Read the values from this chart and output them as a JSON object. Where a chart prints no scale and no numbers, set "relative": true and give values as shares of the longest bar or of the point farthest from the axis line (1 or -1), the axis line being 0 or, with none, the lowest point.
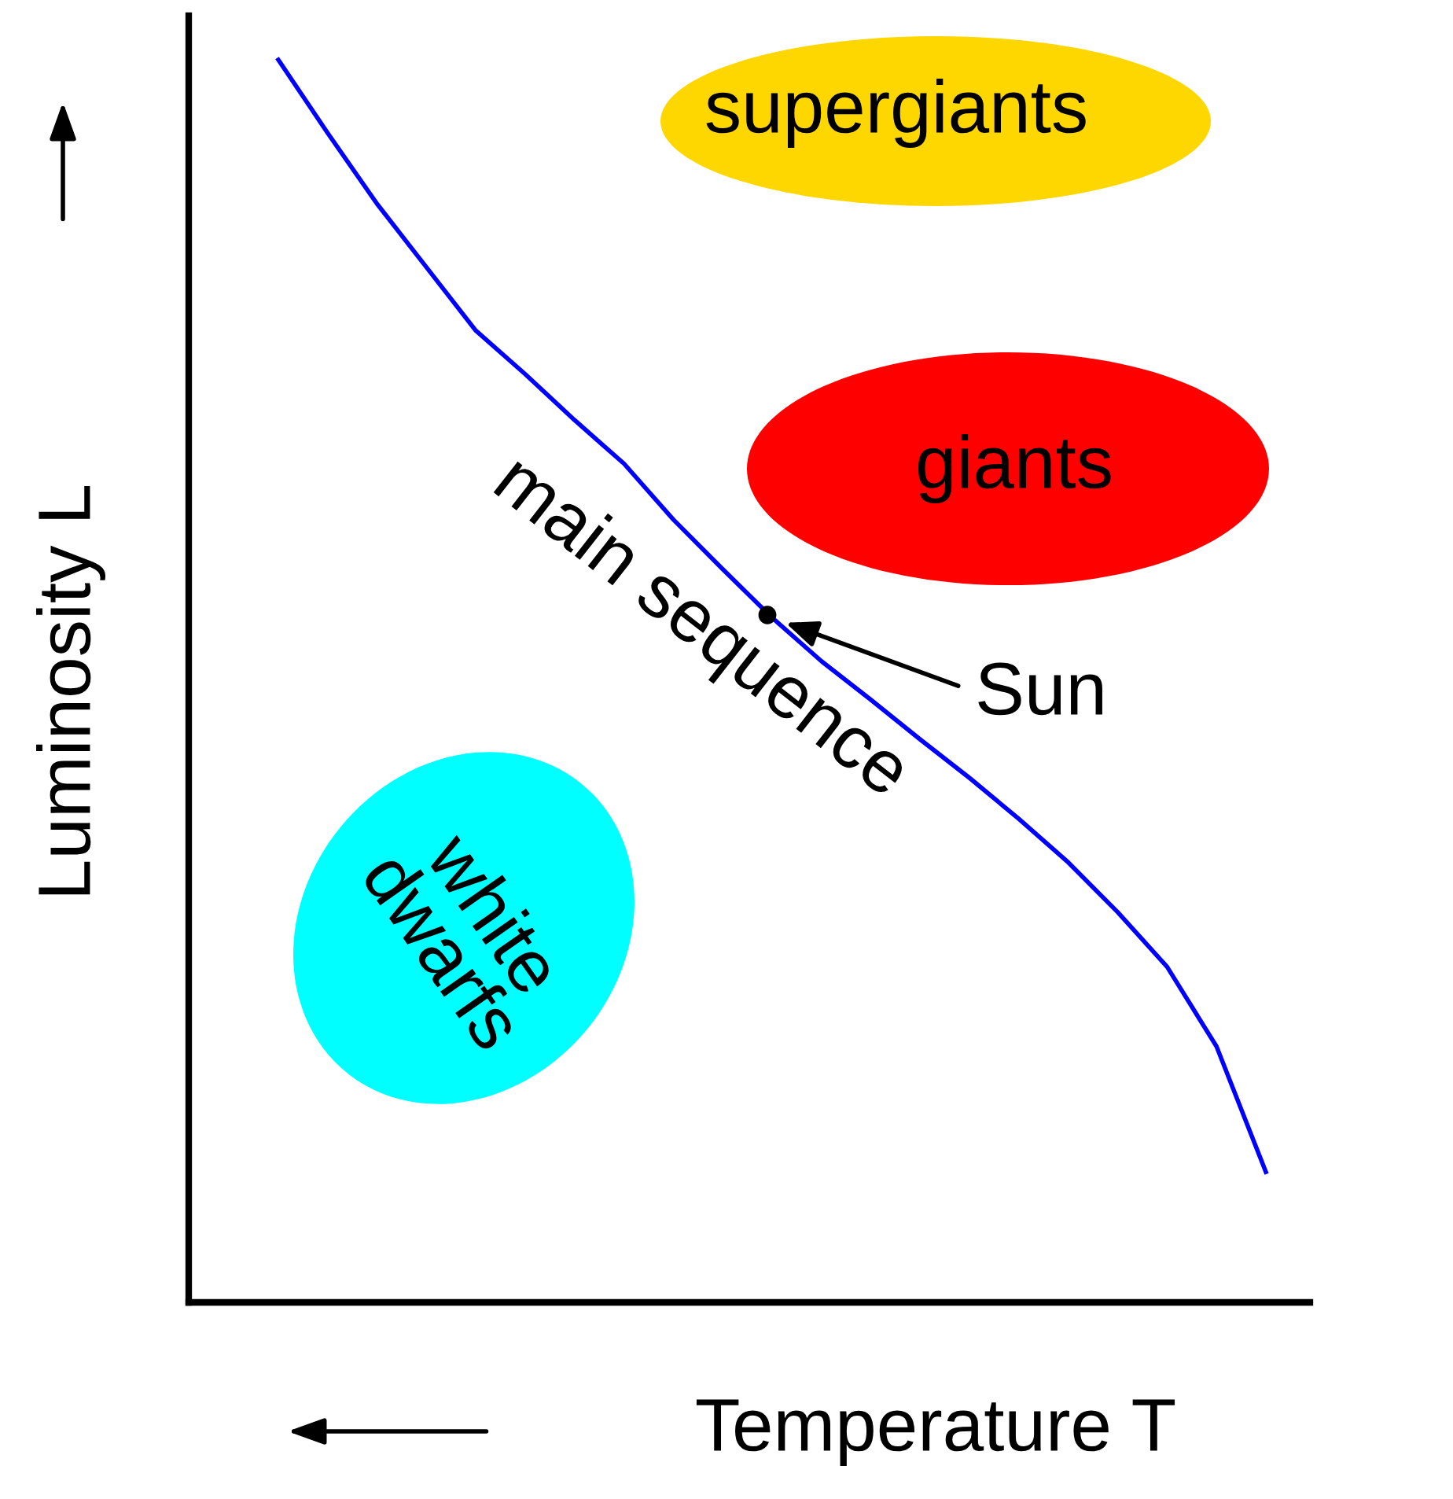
{
  "chart_data": {
    "type": "line",
    "relative": true,
    "categories": [
      null,
      null,
      null,
      null,
      null,
      null,
      null,
      null,
      null,
      null,
      null,
      null,
      null,
      null,
      null,
      null,
      null,
      null,
      null,
      null,
      null
    ],
    "series": [
      {
        "color": "#0000ff",
        "values": [
          1.0,
          0.941,
          0.884,
          0.833,
          0.782,
          0.747,
          0.71,
          0.675,
          0.63,
          0.59,
          0.551,
          0.516,
          0.485,
          0.453,
          0.422,
          0.389,
          0.354,
          0.314,
          0.27,
          0.206,
          0.105
        ]
      }
    ],
    "xlabel": "Temperature T",
    "ylabel": "Luminosity L",
    "annotations": [
      "supergiants",
      "giants",
      "white\ndwarfs",
      "main sequence",
      "Sun"
    ]
  }
}
